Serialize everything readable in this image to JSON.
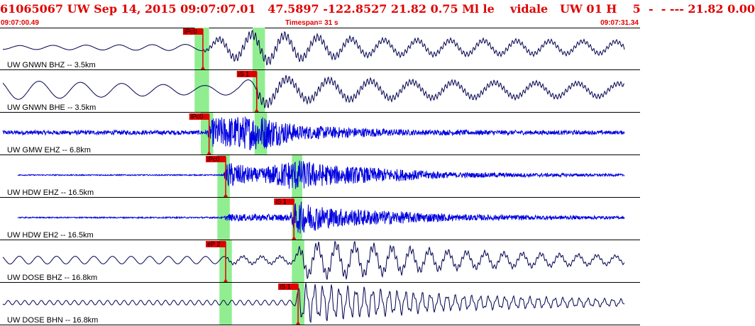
{
  "header": {
    "title": "61065067 UW Sep 14, 2015 09:07:07.01   47.5897 -122.8527 21.82 0.75 Ml le    vidale   UW 01 H    5  -  - --- 21.82 0.00",
    "start_time": "09:07:00.49",
    "timespan_label": "Timespan=  31 s",
    "end_time": "09:07:31.34"
  },
  "colors": {
    "title": "#e00000",
    "trace_long_period": "#000050",
    "trace_short_period": "#0000e0",
    "pick": "#e00000",
    "window": "#90ee90"
  },
  "chart_data": {
    "type": "line",
    "title": "61065067 UW Sep 14, 2015 09:07:07.01",
    "xlim": [
      0,
      30.85
    ],
    "x_unit": "seconds after 09:07:00.49",
    "grid": false,
    "channels": [
      {
        "label": "UW GNWN BHZ -- 3.5km",
        "pick": "iPc0",
        "pick_time": 9.8,
        "window": [
          9.4,
          10.1
        ],
        "window2": [
          12.2,
          12.8
        ],
        "style": "long-period",
        "sig": [
          [
            0.0,
            0.1
          ],
          [
            9.8,
            0.18
          ],
          [
            10.5,
            0.45
          ],
          [
            12.5,
            0.8
          ],
          [
            14.0,
            0.65
          ],
          [
            18.0,
            0.42
          ],
          [
            24.0,
            0.38
          ],
          [
            30.85,
            0.32
          ]
        ],
        "period": 1.6
      },
      {
        "label": "UW GNWN BHE -- 3.5km",
        "pick": "iS 1",
        "pick_time": 12.4,
        "window": [
          9.4,
          10.1
        ],
        "window2": [
          12.2,
          12.8
        ],
        "style": "long-period",
        "sig": [
          [
            0.0,
            0.55
          ],
          [
            9.8,
            0.25
          ],
          [
            11.5,
            0.3
          ],
          [
            12.4,
            0.85
          ],
          [
            14.0,
            0.6
          ],
          [
            20.0,
            0.45
          ],
          [
            30.85,
            0.35
          ]
        ],
        "period": 2.0
      },
      {
        "label": "UW GMW EHZ -- 6.8km",
        "pick": "iPc0",
        "pick_time": 10.1,
        "window": [
          9.7,
          10.3
        ],
        "window2": [
          12.3,
          12.9
        ],
        "style": "short-period",
        "sig": [
          [
            0.0,
            0.12
          ],
          [
            10.0,
            0.12
          ],
          [
            10.3,
            0.85
          ],
          [
            12.6,
            1.0
          ],
          [
            14.5,
            0.4
          ],
          [
            20.0,
            0.15
          ],
          [
            30.85,
            0.1
          ]
        ],
        "period": 0.12
      },
      {
        "label": "UW HDW EHZ -- 16.5km",
        "pick": "iPc0",
        "pick_time": 10.9,
        "window": [
          10.5,
          11.1
        ],
        "window2": [
          14.1,
          14.6
        ],
        "style": "short-period",
        "sig": [
          [
            0.0,
            0.03
          ],
          [
            10.8,
            0.03
          ],
          [
            11.0,
            0.75
          ],
          [
            12.5,
            0.35
          ],
          [
            14.2,
            0.9
          ],
          [
            16.0,
            0.55
          ],
          [
            22.0,
            0.15
          ],
          [
            30.85,
            0.05
          ]
        ],
        "period": 0.1
      },
      {
        "label": "UW HDW EH2 -- 16.5km",
        "pick": "iS 1",
        "pick_time": 14.2,
        "window": [
          10.5,
          11.1
        ],
        "window2": [
          14.1,
          14.6
        ],
        "style": "short-period",
        "sig": [
          [
            0.0,
            0.03
          ],
          [
            10.8,
            0.04
          ],
          [
            11.0,
            0.2
          ],
          [
            14.0,
            0.18
          ],
          [
            14.3,
            0.95
          ],
          [
            16.0,
            0.55
          ],
          [
            22.0,
            0.18
          ],
          [
            30.85,
            0.06
          ]
        ],
        "period": 0.1
      },
      {
        "label": "UW DOSE BHZ -- 16.8km",
        "pick": "eP 2",
        "pick_time": 10.9,
        "window": [
          10.6,
          11.2
        ],
        "window2": [
          14.1,
          14.7
        ],
        "style": "long-period",
        "sig": [
          [
            0.0,
            0.22
          ],
          [
            14.2,
            0.2
          ],
          [
            14.6,
            0.8
          ],
          [
            16.5,
            0.85
          ],
          [
            22.0,
            0.45
          ],
          [
            30.85,
            0.2
          ]
        ],
        "period": 0.9
      },
      {
        "label": "UW DOSE BHN -- 16.8km",
        "pick": "iS 1",
        "pick_time": 14.4,
        "window": [
          10.6,
          11.2
        ],
        "window2": [
          14.1,
          14.7
        ],
        "style": "long-period",
        "sig": [
          [
            0.0,
            0.12
          ],
          [
            14.2,
            0.14
          ],
          [
            14.5,
            0.9
          ],
          [
            16.5,
            0.75
          ],
          [
            22.0,
            0.35
          ],
          [
            30.85,
            0.15
          ]
        ],
        "period": 0.4
      }
    ]
  }
}
